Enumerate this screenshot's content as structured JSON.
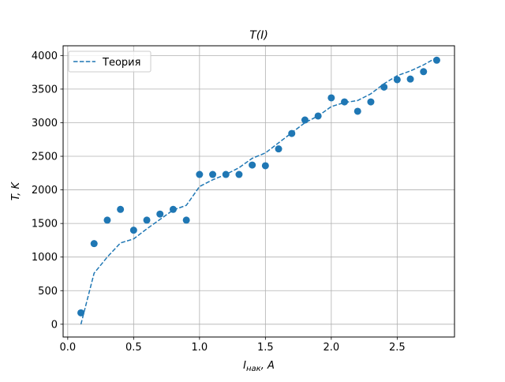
{
  "chart_data": {
    "type": "scatter",
    "title": "T(I)",
    "xlabel": "I",
    "xlabel_sub": "нак",
    "xlabel_unit": ", A",
    "ylabel": "T, K",
    "xlim": [
      -0.035,
      2.935
    ],
    "ylim": [
      -190,
      4145
    ],
    "xticks": [
      0.0,
      0.5,
      1.0,
      1.5,
      2.0,
      2.5
    ],
    "xtick_labels": [
      "0.0",
      "0.5",
      "1.0",
      "1.5",
      "2.0",
      "2.5"
    ],
    "yticks": [
      0,
      500,
      1000,
      1500,
      2000,
      2500,
      3000,
      3500,
      4000
    ],
    "ytick_labels": [
      "0",
      "500",
      "1000",
      "1500",
      "2000",
      "2500",
      "3000",
      "3500",
      "4000"
    ],
    "grid": true,
    "legend": {
      "placement": "top-left",
      "entries": [
        "Теория"
      ]
    },
    "colors": {
      "series": "#1f77b4",
      "grid": "#b0b0b0",
      "axis": "#000000"
    },
    "series": [
      {
        "name": "Теория",
        "style": "dashed-line",
        "x": [
          0.1,
          0.2,
          0.3,
          0.4,
          0.5,
          0.6,
          0.7,
          0.8,
          0.9,
          1.0,
          1.1,
          1.2,
          1.3,
          1.4,
          1.5,
          1.6,
          1.7,
          1.8,
          1.9,
          2.0,
          2.1,
          2.2,
          2.3,
          2.4,
          2.5,
          2.6,
          2.7,
          2.8
        ],
        "y": [
          0,
          760,
          1000,
          1210,
          1270,
          1420,
          1560,
          1700,
          1770,
          2050,
          2150,
          2230,
          2330,
          2470,
          2550,
          2700,
          2850,
          3000,
          3100,
          3240,
          3300,
          3330,
          3430,
          3580,
          3700,
          3770,
          3860,
          3970
        ]
      },
      {
        "name": "",
        "style": "markers",
        "x": [
          0.1,
          0.2,
          0.3,
          0.4,
          0.5,
          0.6,
          0.7,
          0.8,
          0.9,
          1.0,
          1.1,
          1.2,
          1.3,
          1.4,
          1.5,
          1.6,
          1.7,
          1.8,
          1.9,
          2.0,
          2.1,
          2.2,
          2.3,
          2.4,
          2.5,
          2.6,
          2.7,
          2.8
        ],
        "y": [
          170,
          1200,
          1550,
          1710,
          1400,
          1550,
          1640,
          1710,
          1550,
          2230,
          2230,
          2230,
          2230,
          2370,
          2360,
          2610,
          2840,
          3040,
          3100,
          3370,
          3310,
          3170,
          3310,
          3530,
          3640,
          3650,
          3760,
          3930
        ]
      }
    ]
  }
}
